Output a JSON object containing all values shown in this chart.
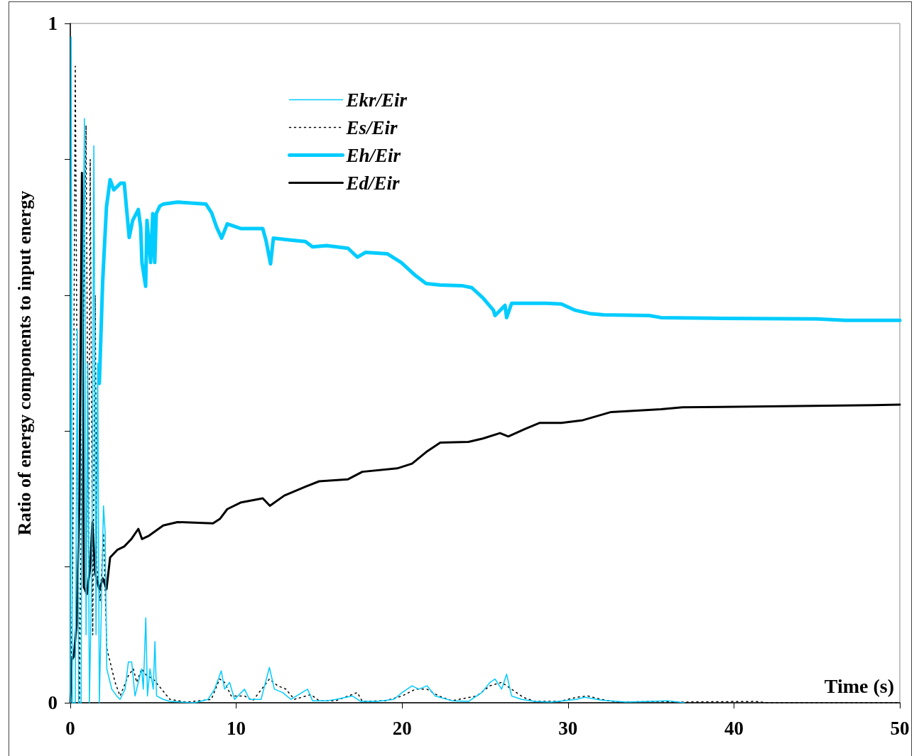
{
  "chart_data": {
    "type": "line",
    "xlabel": "Time (s)",
    "ylabel": "Ratio of energy components to input energy",
    "xlim": [
      0,
      50
    ],
    "xticks": [
      0,
      10,
      20,
      30,
      40,
      50
    ],
    "ylim": [
      0,
      1
    ],
    "yticks": [
      0,
      {
        "value": 0.2,
        "label": null
      },
      {
        "value": 0.4,
        "label": null
      },
      {
        "value": 0.6,
        "label": null
      },
      {
        "value": 0.8,
        "label": null
      },
      1
    ],
    "grid": false,
    "legend": "top left",
    "marker": "none",
    "series": [
      {
        "name": "Ekr/Eir",
        "color": "#00ccff",
        "line_style": "solid",
        "x": [
          0,
          0.05,
          0.12,
          0.3,
          0.42,
          0.5,
          0.65,
          0.75,
          0.85,
          0.95,
          1.05,
          1.15,
          1.3,
          1.42,
          1.55,
          1.65,
          1.75,
          2.0,
          2.1,
          2.2,
          2.5,
          2.8,
          3.0,
          3.3,
          3.5,
          3.7,
          3.9,
          4.1,
          4.3,
          4.4,
          4.55,
          4.65,
          4.8,
          5.0,
          5.1,
          5.2,
          5.6,
          6.0,
          7.5,
          8.3,
          8.7,
          9.1,
          9.3,
          9.6,
          9.9,
          10.5,
          10.8,
          11.5,
          12.0,
          12.3,
          12.8,
          13.3,
          14.3,
          14.6,
          15.5,
          16.0,
          17.0,
          17.5,
          18.5,
          19.5,
          20.0,
          20.6,
          21.0,
          21.5,
          22.0,
          23.0,
          24.0,
          24.8,
          25.3,
          25.6,
          26.0,
          26.3,
          26.6,
          27.2,
          28.0,
          29.0,
          30.5,
          31.0,
          32.0,
          33.5,
          35.0,
          36.0,
          37.0
        ],
        "values": [
          0,
          0.98,
          0,
          0,
          0.55,
          0,
          0,
          0.6,
          0.86,
          0.1,
          0.5,
          0,
          0.2,
          0.82,
          0.1,
          0.5,
          0,
          0.29,
          0.25,
          0.05,
          0.02,
          0.01,
          0.005,
          0.02,
          0.06,
          0.06,
          0.01,
          0.03,
          0.05,
          0.02,
          0.125,
          0.01,
          0.05,
          0.02,
          0.09,
          0.01,
          0.005,
          0.002,
          0,
          0.005,
          0.02,
          0.047,
          0.02,
          0.03,
          0.005,
          0.02,
          0.005,
          0.005,
          0.052,
          0.02,
          0.015,
          0.005,
          0.02,
          0.003,
          0.003,
          0.005,
          0.01,
          0.002,
          0.002,
          0.005,
          0.015,
          0.025,
          0.02,
          0.025,
          0.01,
          0.003,
          0.002,
          0.015,
          0.03,
          0.035,
          0.02,
          0.042,
          0.01,
          0.005,
          0.002,
          0.001,
          0.005,
          0.008,
          0.004,
          0.001,
          0.002,
          0.003,
          0
        ]
      },
      {
        "name": "Es/Eir",
        "color": "#000000",
        "line_style": "dotted",
        "x": [
          0,
          0.15,
          0.3,
          0.45,
          0.55,
          0.7,
          0.95,
          1.1,
          1.2,
          1.35,
          1.5,
          1.6,
          1.8,
          2.0,
          2.2,
          2.5,
          2.7,
          3.0,
          3.5,
          3.8,
          4.0,
          4.3,
          4.6,
          5.0,
          5.5,
          6.0,
          7.0,
          8.5,
          9.0,
          9.3,
          9.7,
          10.5,
          11.0,
          12.0,
          12.5,
          13.0,
          13.5,
          14.5,
          15.0,
          16.0,
          17.3,
          17.6,
          19.0,
          20.0,
          20.8,
          21.5,
          22.2,
          23.0,
          24.5,
          25.3,
          26.0,
          26.6,
          27.3,
          28.0,
          29.5,
          30.5,
          31.2,
          32.0,
          33.0,
          35.5,
          36.5,
          41.3,
          42.0,
          50
        ],
        "values": [
          0,
          0.2,
          0.937,
          0.3,
          0,
          0.4,
          0.85,
          0.2,
          0.8,
          0.1,
          0.6,
          0.2,
          0.15,
          0.25,
          0.08,
          0.05,
          0.03,
          0.01,
          0.04,
          0.05,
          0.03,
          0.05,
          0.04,
          0.035,
          0.02,
          0.005,
          0.001,
          0.005,
          0.035,
          0.03,
          0.01,
          0.01,
          0.003,
          0.035,
          0.025,
          0.02,
          0.005,
          0.012,
          0.003,
          0.003,
          0.015,
          0.002,
          0.003,
          0.01,
          0.02,
          0.02,
          0.01,
          0.003,
          0.01,
          0.025,
          0.03,
          0.02,
          0.008,
          0.002,
          0.002,
          0.008,
          0.01,
          0.005,
          0.001,
          0.002,
          0.001,
          0.002,
          0,
          0
        ]
      },
      {
        "name": "Eh/Eir",
        "color": "#00ccff",
        "line_style": "solid",
        "x": [
          1.75,
          1.95,
          2.18,
          2.4,
          2.62,
          3.04,
          3.25,
          3.38,
          3.55,
          3.76,
          4.1,
          4.24,
          4.32,
          4.54,
          4.62,
          4.84,
          4.97,
          5.09,
          5.18,
          5.39,
          5.6,
          6.46,
          8.18,
          8.52,
          8.82,
          9.12,
          9.46,
          10.3,
          11.6,
          11.8,
          12.07,
          12.24,
          13.3,
          14.17,
          14.6,
          15.45,
          16.74,
          17.3,
          17.8,
          19.1,
          19.95,
          20.8,
          21.45,
          22.3,
          23.6,
          24.2,
          24.87,
          25.5,
          25.6,
          26.2,
          26.3,
          26.6,
          28.7,
          29.6,
          30.4,
          31.3,
          32.15,
          34.9,
          35.6,
          38.6,
          45,
          46.7,
          50
        ],
        "values": [
          0.47,
          0.62,
          0.73,
          0.77,
          0.755,
          0.765,
          0.765,
          0.73,
          0.685,
          0.71,
          0.726,
          0.7,
          0.648,
          0.613,
          0.71,
          0.648,
          0.72,
          0.648,
          0.72,
          0.731,
          0.734,
          0.737,
          0.734,
          0.721,
          0.7,
          0.684,
          0.705,
          0.698,
          0.698,
          0.68,
          0.646,
          0.684,
          0.681,
          0.679,
          0.671,
          0.673,
          0.669,
          0.656,
          0.663,
          0.661,
          0.648,
          0.629,
          0.617,
          0.615,
          0.614,
          0.611,
          0.596,
          0.578,
          0.57,
          0.585,
          0.567,
          0.588,
          0.588,
          0.587,
          0.578,
          0.573,
          0.571,
          0.57,
          0.567,
          0.566,
          0.565,
          0.563,
          0.563
        ]
      },
      {
        "name": "Ed/Eir",
        "color": "#000000",
        "line_style": "solid",
        "x": [
          0,
          0.08,
          0.21,
          0.38,
          0.55,
          0.7,
          0.82,
          1.0,
          1.2,
          1.33,
          1.5,
          1.75,
          1.97,
          2.18,
          2.4,
          2.83,
          3.25,
          3.68,
          4.1,
          4.32,
          4.75,
          5.6,
          6.46,
          8.6,
          9.03,
          9.46,
          10.3,
          11.6,
          12.03,
          12.9,
          14.17,
          15.0,
          16.74,
          17.6,
          19.7,
          20.6,
          21.45,
          22.3,
          24.0,
          24.87,
          25.9,
          26.4,
          27.4,
          28.3,
          29.6,
          30.9,
          32.6,
          35.6,
          36.9,
          41.1,
          48.4,
          50
        ],
        "values": [
          0,
          0.063,
          0.068,
          0.115,
          0.3,
          0.78,
          0.17,
          0.16,
          0.2,
          0.266,
          0.19,
          0.167,
          0.183,
          0.167,
          0.214,
          0.225,
          0.23,
          0.241,
          0.256,
          0.241,
          0.246,
          0.261,
          0.266,
          0.264,
          0.271,
          0.285,
          0.295,
          0.301,
          0.29,
          0.305,
          0.318,
          0.326,
          0.329,
          0.34,
          0.345,
          0.352,
          0.369,
          0.383,
          0.384,
          0.389,
          0.397,
          0.392,
          0.403,
          0.412,
          0.412,
          0.416,
          0.428,
          0.432,
          0.435,
          0.436,
          0.438,
          0.439
        ]
      }
    ]
  }
}
